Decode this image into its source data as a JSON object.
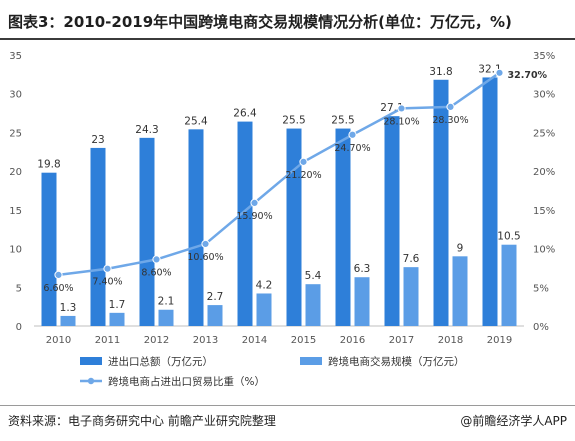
{
  "title": "图表3：2010-2019年中国跨境电商交易规模情况分析(单位：万亿元，%)",
  "footer": {
    "source": "资料来源：电子商务研究中心 前瞻产业研究院整理",
    "brand": "@前瞻经济学人APP"
  },
  "chart_data": {
    "type": "bar",
    "categories": [
      "2010",
      "2011",
      "2012",
      "2013",
      "2014",
      "2015",
      "2016",
      "2017",
      "2018",
      "2019"
    ],
    "series": [
      {
        "name": "进出口总额（万亿元）",
        "type": "bar",
        "axis": "left",
        "values": [
          19.8,
          23,
          24.3,
          25.4,
          26.4,
          25.5,
          25.5,
          27.1,
          31.8,
          32.1
        ],
        "labels": [
          "19.8",
          "23",
          "24.3",
          "25.4",
          "26.4",
          "25.5",
          "25.5",
          "27.1",
          "31.8",
          "32.1"
        ],
        "color": "#2e7fd9"
      },
      {
        "name": "跨境电商交易规模（万亿元）",
        "type": "bar",
        "axis": "left",
        "values": [
          1.3,
          1.7,
          2.1,
          2.7,
          4.2,
          5.4,
          6.3,
          7.6,
          9,
          10.5
        ],
        "labels": [
          "1.3",
          "1.7",
          "2.1",
          "2.7",
          "4.2",
          "5.4",
          "6.3",
          "7.6",
          "9",
          "10.5"
        ],
        "color": "#5b9de6"
      },
      {
        "name": "跨境电商占进出口贸易比重（%）",
        "type": "line",
        "axis": "right",
        "values": [
          6.6,
          7.4,
          8.6,
          10.6,
          15.9,
          21.2,
          24.7,
          28.1,
          28.3,
          32.7
        ],
        "labels": [
          "6.60%",
          "7.40%",
          "8.60%",
          "10.60%",
          "15.90%",
          "21.20%",
          "24.70%",
          "28.10%",
          "28.30%",
          "32.70%"
        ],
        "color": "#6fa8e8"
      }
    ],
    "ylim": [
      0,
      35
    ],
    "yticks": [
      "0",
      "5",
      "10",
      "15",
      "20",
      "25",
      "30",
      "35"
    ],
    "y2lim": [
      0,
      35
    ],
    "y2ticks": [
      "0%",
      "5%",
      "10%",
      "15%",
      "20%",
      "25%",
      "30%",
      "35%"
    ],
    "highlight_color": "#e02020",
    "grid": false,
    "legend_position": "bottom"
  }
}
